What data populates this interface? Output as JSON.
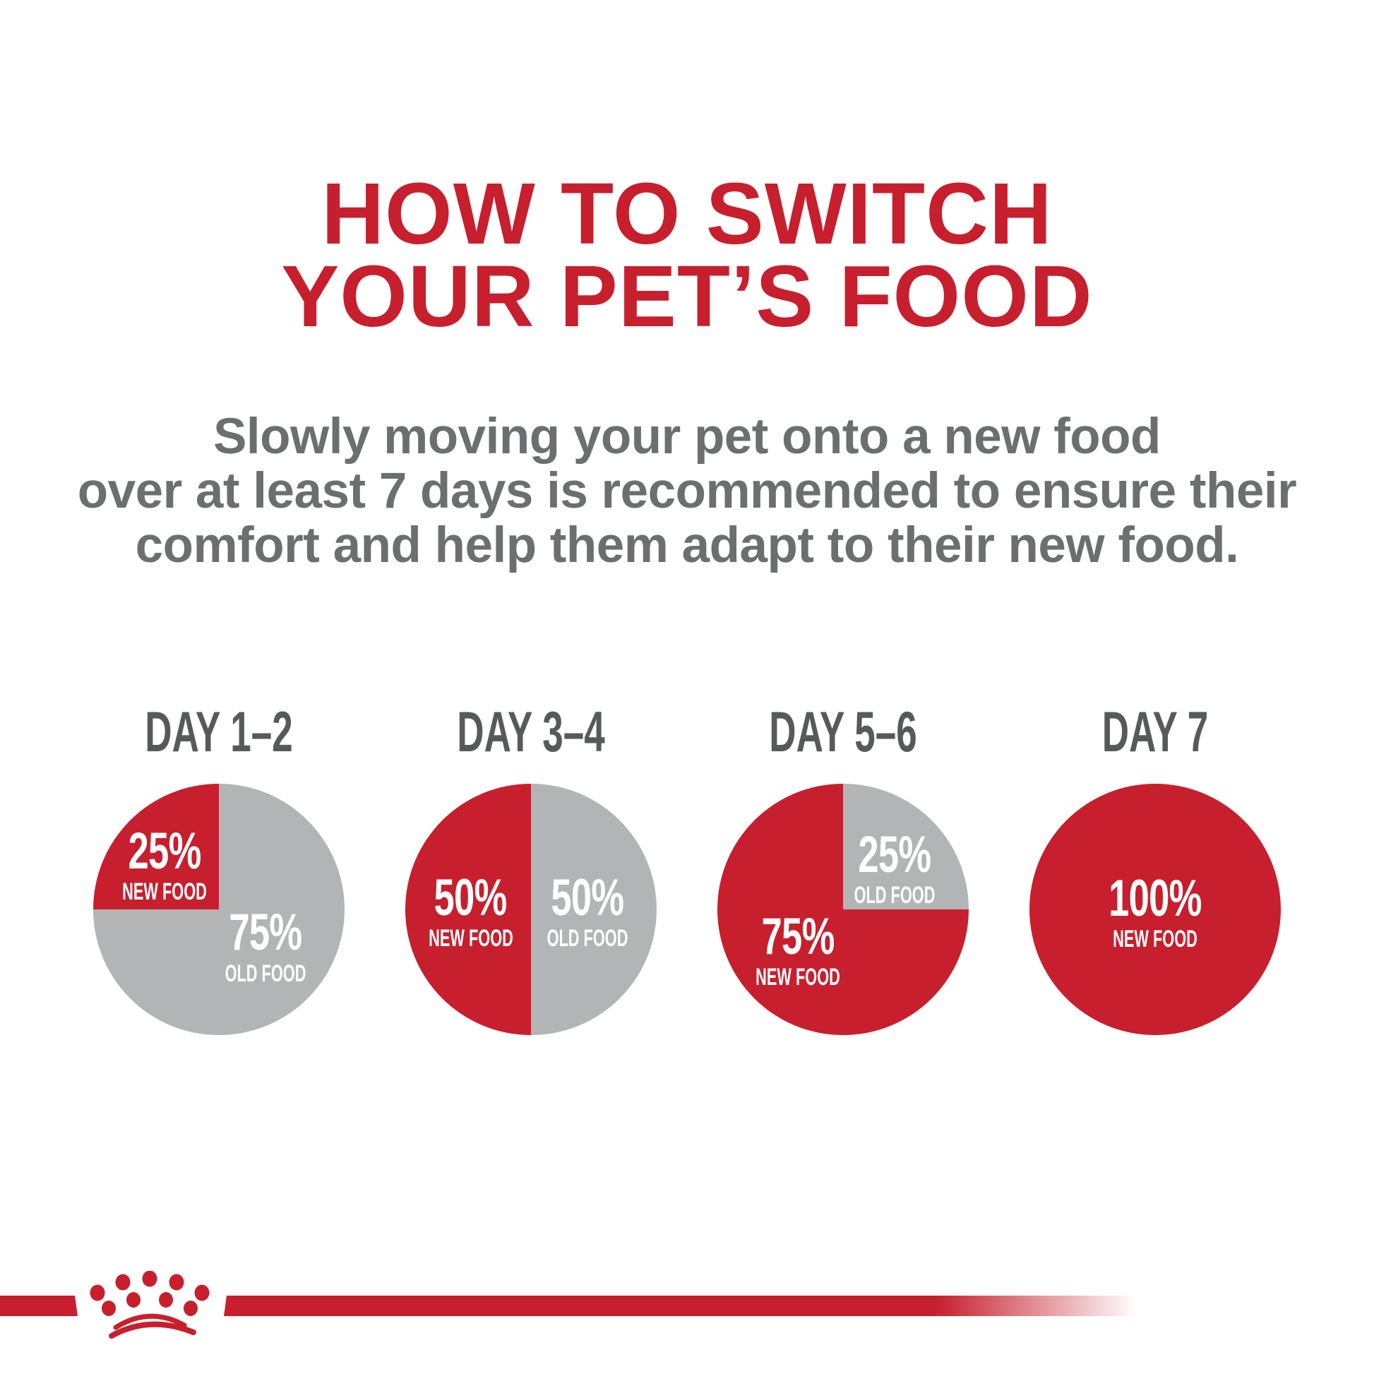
{
  "background": "#FFFFFF",
  "header": {
    "title_line1": "HOW TO SWITCH",
    "title_line2": "YOUR PET’S FOOD",
    "title_color": "#C71F2D"
  },
  "subtitle": {
    "color": "#6D6E70",
    "line1": "Slowly moving your pet onto a new food",
    "line2": "over at least 7 days is recommended to ensure their",
    "line3": "comfort and help them adapt to their new food."
  },
  "chart_data": {
    "type": "pie",
    "title": "HOW TO SWITCH YOUR PET’S FOOD",
    "subtitle": "Slowly moving your pet onto a new food over at least 7 days is recommended to ensure their comfort and help them adapt to their new food.",
    "legend_position": "labels-inside-slices",
    "colors": {
      "new_food": "#C71F2D",
      "old_food": "#B3B4B6",
      "slice_label_text": "#FFFFFF",
      "category_label": "#58595B"
    },
    "categories": [
      "DAY 1–2",
      "DAY 3–4",
      "DAY 5–6",
      "DAY 7"
    ],
    "series": [
      {
        "name": "NEW FOOD",
        "values": [
          25,
          50,
          75,
          100
        ]
      },
      {
        "name": "OLD FOOD",
        "values": [
          75,
          50,
          25,
          0
        ]
      }
    ],
    "charts": [
      {
        "category": "DAY 1–2",
        "slices": [
          {
            "name": "OLD FOOD",
            "value": 75,
            "display": "75%",
            "color": "#B3B4B6",
            "label_pos": "lower-right"
          },
          {
            "name": "NEW FOOD",
            "value": 25,
            "display": "25%",
            "color": "#C71F2D",
            "label_pos": "upper-left"
          }
        ]
      },
      {
        "category": "DAY 3–4",
        "slices": [
          {
            "name": "OLD FOOD",
            "value": 50,
            "display": "50%",
            "color": "#B3B4B6",
            "label_pos": "center-right"
          },
          {
            "name": "NEW FOOD",
            "value": 50,
            "display": "50%",
            "color": "#C71F2D",
            "label_pos": "center-left"
          }
        ]
      },
      {
        "category": "DAY 5–6",
        "slices": [
          {
            "name": "OLD FOOD",
            "value": 25,
            "display": "25%",
            "color": "#B3B4B6",
            "label_pos": "upper-right"
          },
          {
            "name": "NEW FOOD",
            "value": 75,
            "display": "75%",
            "color": "#C71F2D",
            "label_pos": "lower-left"
          }
        ]
      },
      {
        "category": "DAY 7",
        "slices": [
          {
            "name": "NEW FOOD",
            "value": 100,
            "display": "100%",
            "color": "#C71F2D",
            "label_pos": "center"
          }
        ]
      }
    ]
  },
  "footer": {
    "logo_icon": "royal-canin-crown-logo",
    "accent_color": "#C71F2D"
  }
}
